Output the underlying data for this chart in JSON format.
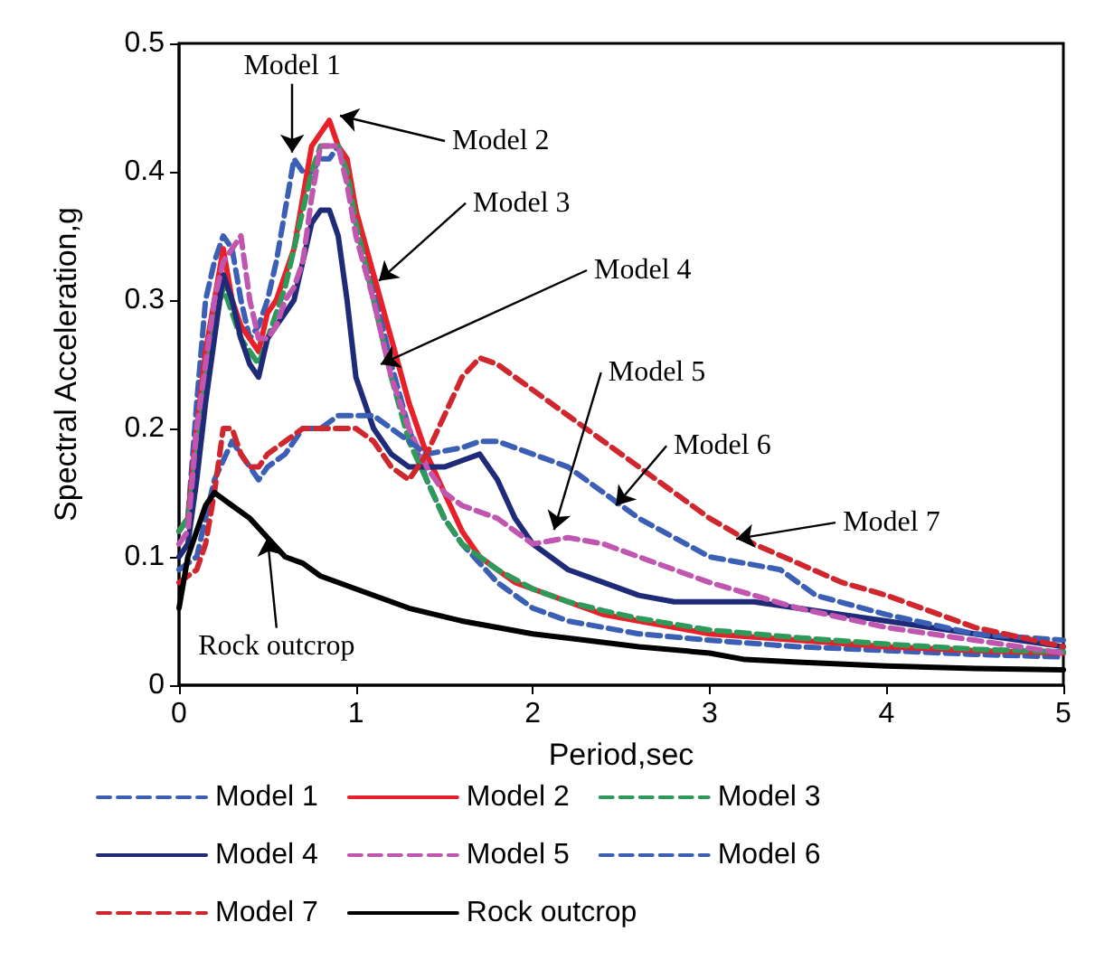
{
  "chart_data": {
    "type": "line",
    "xlabel": "Period,sec",
    "ylabel": "Spectral Acceleration,g",
    "xlim": [
      0,
      5
    ],
    "ylim": [
      0,
      0.5
    ],
    "xticks": [
      0,
      1,
      2,
      3,
      4,
      5
    ],
    "yticks": [
      0,
      0.1,
      0.2,
      0.3,
      0.4,
      0.5
    ],
    "grid": false,
    "legend": "bottom",
    "marker": "none",
    "series": [
      {
        "name": "Model 1",
        "color": "#3a5fb5",
        "line_style": "dashed",
        "x": [
          0,
          0.05,
          0.1,
          0.15,
          0.2,
          0.25,
          0.3,
          0.35,
          0.4,
          0.45,
          0.5,
          0.55,
          0.6,
          0.65,
          0.7,
          0.75,
          0.8,
          0.85,
          0.9,
          0.95,
          1.0,
          1.1,
          1.2,
          1.3,
          1.4,
          1.5,
          1.6,
          1.8,
          2.0,
          2.2,
          2.4,
          2.6,
          3.0,
          3.5,
          4.0,
          4.5,
          5.0
        ],
        "values": [
          0.12,
          0.13,
          0.22,
          0.3,
          0.33,
          0.35,
          0.34,
          0.3,
          0.27,
          0.28,
          0.3,
          0.33,
          0.37,
          0.41,
          0.4,
          0.4,
          0.41,
          0.41,
          0.42,
          0.4,
          0.37,
          0.31,
          0.25,
          0.2,
          0.16,
          0.13,
          0.11,
          0.08,
          0.06,
          0.05,
          0.045,
          0.04,
          0.035,
          0.03,
          0.027,
          0.024,
          0.022
        ]
      },
      {
        "name": "Model 2",
        "color": "#e8202a",
        "line_style": "solid",
        "x": [
          0,
          0.05,
          0.1,
          0.15,
          0.2,
          0.25,
          0.3,
          0.35,
          0.4,
          0.45,
          0.5,
          0.55,
          0.6,
          0.65,
          0.7,
          0.75,
          0.8,
          0.85,
          0.9,
          0.95,
          1.0,
          1.1,
          1.2,
          1.3,
          1.4,
          1.5,
          1.6,
          1.7,
          1.8,
          1.9,
          2.0,
          2.2,
          2.4,
          2.6,
          2.8,
          3.0,
          3.5,
          4.0,
          4.5,
          5.0
        ],
        "values": [
          0.12,
          0.13,
          0.2,
          0.26,
          0.3,
          0.34,
          0.3,
          0.28,
          0.27,
          0.26,
          0.29,
          0.3,
          0.32,
          0.34,
          0.38,
          0.42,
          0.43,
          0.44,
          0.42,
          0.41,
          0.37,
          0.32,
          0.27,
          0.22,
          0.18,
          0.15,
          0.12,
          0.1,
          0.09,
          0.08,
          0.075,
          0.065,
          0.055,
          0.05,
          0.045,
          0.04,
          0.035,
          0.03,
          0.027,
          0.025
        ]
      },
      {
        "name": "Model 3",
        "color": "#2e9a5a",
        "line_style": "dashed",
        "x": [
          0,
          0.05,
          0.1,
          0.15,
          0.2,
          0.25,
          0.3,
          0.35,
          0.4,
          0.45,
          0.5,
          0.55,
          0.6,
          0.65,
          0.7,
          0.75,
          0.8,
          0.85,
          0.9,
          0.95,
          1.0,
          1.1,
          1.2,
          1.3,
          1.4,
          1.5,
          1.6,
          1.8,
          2.0,
          2.2,
          2.4,
          2.6,
          3.0,
          3.5,
          4.0,
          4.5,
          5.0
        ],
        "values": [
          0.12,
          0.13,
          0.18,
          0.24,
          0.28,
          0.31,
          0.29,
          0.27,
          0.26,
          0.25,
          0.27,
          0.29,
          0.31,
          0.34,
          0.37,
          0.4,
          0.42,
          0.42,
          0.42,
          0.4,
          0.36,
          0.3,
          0.24,
          0.19,
          0.16,
          0.13,
          0.11,
          0.09,
          0.075,
          0.065,
          0.058,
          0.052,
          0.043,
          0.037,
          0.032,
          0.028,
          0.026
        ]
      },
      {
        "name": "Model 4",
        "color": "#1f2a78",
        "line_style": "solid",
        "x": [
          0,
          0.05,
          0.1,
          0.15,
          0.2,
          0.25,
          0.3,
          0.35,
          0.4,
          0.45,
          0.5,
          0.55,
          0.6,
          0.65,
          0.7,
          0.75,
          0.8,
          0.85,
          0.9,
          0.95,
          1.0,
          1.1,
          1.2,
          1.3,
          1.4,
          1.5,
          1.6,
          1.7,
          1.8,
          1.9,
          2.0,
          2.2,
          2.4,
          2.6,
          2.8,
          3.0,
          3.25,
          3.5,
          3.75,
          4.0,
          4.5,
          5.0
        ],
        "values": [
          0.1,
          0.11,
          0.16,
          0.22,
          0.27,
          0.32,
          0.3,
          0.27,
          0.25,
          0.24,
          0.27,
          0.28,
          0.29,
          0.3,
          0.33,
          0.36,
          0.37,
          0.37,
          0.35,
          0.3,
          0.24,
          0.2,
          0.18,
          0.17,
          0.17,
          0.17,
          0.175,
          0.18,
          0.16,
          0.13,
          0.11,
          0.09,
          0.08,
          0.07,
          0.065,
          0.065,
          0.065,
          0.06,
          0.055,
          0.05,
          0.04,
          0.03
        ]
      },
      {
        "name": "Model 5",
        "color": "#c056b0",
        "line_style": "dashed",
        "x": [
          0,
          0.05,
          0.1,
          0.15,
          0.2,
          0.25,
          0.3,
          0.35,
          0.4,
          0.45,
          0.5,
          0.55,
          0.6,
          0.65,
          0.7,
          0.75,
          0.8,
          0.85,
          0.9,
          0.95,
          1.0,
          1.1,
          1.2,
          1.3,
          1.4,
          1.5,
          1.6,
          1.8,
          2.0,
          2.2,
          2.4,
          2.6,
          2.8,
          3.0,
          3.5,
          4.0,
          4.5,
          5.0
        ],
        "values": [
          0.11,
          0.12,
          0.2,
          0.25,
          0.3,
          0.33,
          0.34,
          0.35,
          0.3,
          0.27,
          0.27,
          0.28,
          0.3,
          0.31,
          0.33,
          0.38,
          0.42,
          0.42,
          0.42,
          0.39,
          0.35,
          0.3,
          0.24,
          0.2,
          0.17,
          0.15,
          0.14,
          0.13,
          0.11,
          0.115,
          0.11,
          0.1,
          0.09,
          0.08,
          0.06,
          0.045,
          0.035,
          0.025
        ]
      },
      {
        "name": "Model 6",
        "color": "#3a5fb5",
        "line_style": "dashed",
        "x": [
          0,
          0.1,
          0.2,
          0.3,
          0.4,
          0.45,
          0.5,
          0.6,
          0.7,
          0.8,
          0.9,
          1.0,
          1.1,
          1.2,
          1.4,
          1.6,
          1.7,
          1.8,
          2.0,
          2.2,
          2.4,
          2.6,
          2.8,
          3.0,
          3.2,
          3.4,
          3.6,
          4.0,
          4.5,
          5.0
        ],
        "values": [
          0.09,
          0.1,
          0.16,
          0.19,
          0.17,
          0.16,
          0.17,
          0.18,
          0.2,
          0.2,
          0.21,
          0.21,
          0.21,
          0.2,
          0.18,
          0.185,
          0.19,
          0.19,
          0.18,
          0.17,
          0.15,
          0.13,
          0.115,
          0.1,
          0.095,
          0.09,
          0.07,
          0.055,
          0.04,
          0.035
        ]
      },
      {
        "name": "Model 7",
        "color": "#d0262e",
        "line_style": "dashed",
        "x": [
          0,
          0.1,
          0.15,
          0.2,
          0.25,
          0.3,
          0.35,
          0.4,
          0.45,
          0.5,
          0.6,
          0.7,
          0.8,
          0.9,
          1.0,
          1.1,
          1.2,
          1.3,
          1.4,
          1.5,
          1.6,
          1.7,
          1.8,
          2.0,
          2.2,
          2.4,
          2.6,
          2.8,
          3.0,
          3.25,
          3.5,
          3.75,
          4.0,
          4.5,
          5.0
        ],
        "values": [
          0.08,
          0.09,
          0.11,
          0.15,
          0.2,
          0.2,
          0.18,
          0.17,
          0.17,
          0.18,
          0.19,
          0.2,
          0.2,
          0.2,
          0.2,
          0.19,
          0.17,
          0.16,
          0.18,
          0.21,
          0.24,
          0.255,
          0.25,
          0.23,
          0.21,
          0.19,
          0.17,
          0.15,
          0.13,
          0.11,
          0.095,
          0.08,
          0.07,
          0.045,
          0.03
        ]
      },
      {
        "name": "Rock outcrop",
        "color": "#000000",
        "line_style": "solid",
        "x": [
          0,
          0.05,
          0.1,
          0.15,
          0.2,
          0.25,
          0.3,
          0.4,
          0.5,
          0.6,
          0.7,
          0.8,
          1.0,
          1.3,
          1.6,
          2.0,
          2.3,
          2.6,
          3.0,
          3.2,
          3.5,
          4.0,
          4.5,
          5.0
        ],
        "values": [
          0.06,
          0.1,
          0.12,
          0.14,
          0.15,
          0.145,
          0.14,
          0.13,
          0.115,
          0.1,
          0.095,
          0.085,
          0.075,
          0.06,
          0.05,
          0.04,
          0.035,
          0.03,
          0.025,
          0.02,
          0.018,
          0.015,
          0.013,
          0.012
        ]
      }
    ],
    "annotations": [
      {
        "text": "Model 1",
        "x": 0.64,
        "y": 0.415
      },
      "Model 2",
      {
        "text": "Model 3",
        "x": 1.13,
        "y": 0.315
      },
      {
        "text": "Model 4",
        "x": 1.14,
        "y": 0.25
      },
      {
        "text": "Model 5",
        "x": 2.12,
        "y": 0.121
      },
      {
        "text": "Model 6",
        "x": 2.47,
        "y": 0.14
      },
      {
        "text": "Model 7",
        "x": 3.15,
        "y": 0.114
      },
      {
        "text": "Rock outcrop",
        "x": 0.5,
        "y": 0.115
      }
    ]
  }
}
